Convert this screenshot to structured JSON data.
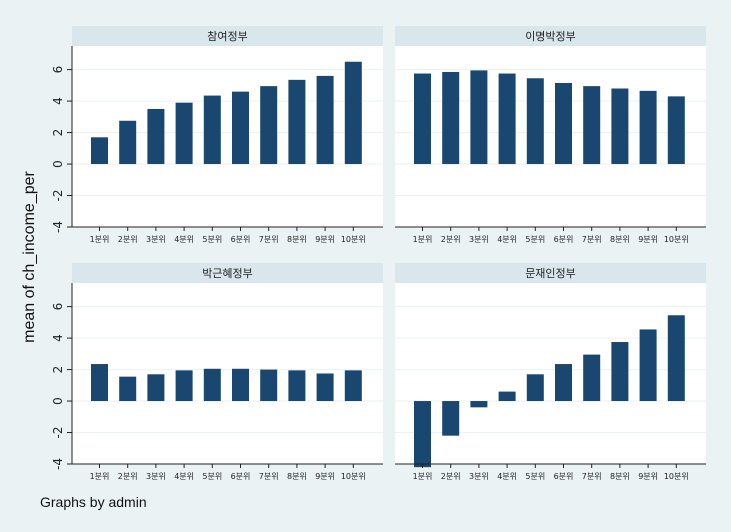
{
  "chart_data": {
    "type": "bar",
    "ylabel": "mean of ch_income_per",
    "note": "Graphs by admin",
    "ylim": [
      -4,
      7.5
    ],
    "yticks": [
      -4,
      -2,
      0,
      2,
      4,
      6
    ],
    "categories": [
      "1분위",
      "2분위",
      "3분위",
      "4분위",
      "5분위",
      "6분위",
      "7분위",
      "8분위",
      "9분위",
      "10분위"
    ],
    "grid": true,
    "bar_color": "#1a476f",
    "panels": [
      {
        "title": "참여정부",
        "values": [
          1.7,
          2.75,
          3.5,
          3.9,
          4.35,
          4.6,
          4.95,
          5.35,
          5.6,
          6.5
        ]
      },
      {
        "title": "이명박정부",
        "values": [
          5.75,
          5.85,
          5.95,
          5.75,
          5.45,
          5.15,
          4.95,
          4.8,
          4.65,
          4.3
        ]
      },
      {
        "title": "박근혜정부",
        "values": [
          2.35,
          1.55,
          1.7,
          1.95,
          2.05,
          2.05,
          2.0,
          1.95,
          1.75,
          1.95
        ]
      },
      {
        "title": "문재인정부",
        "values": [
          -4.2,
          -2.2,
          -0.4,
          0.6,
          1.7,
          2.35,
          2.95,
          3.75,
          4.55,
          5.45
        ]
      }
    ]
  }
}
